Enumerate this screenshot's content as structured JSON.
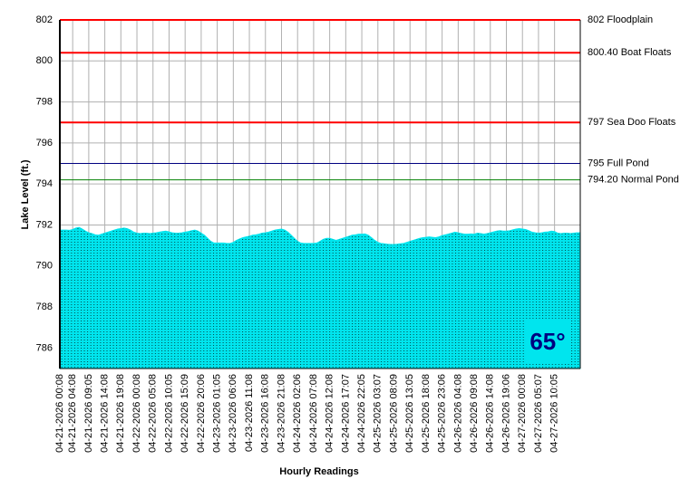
{
  "chart_data": {
    "type": "area",
    "y_axis_label": "Lake Level (ft.)",
    "x_axis_label": "Hourly Readings",
    "ylim": [
      785,
      802
    ],
    "yticks": [
      786,
      788,
      790,
      792,
      794,
      796,
      798,
      800,
      802
    ],
    "grid": true,
    "temperature_label": "65°",
    "reference_lines": [
      {
        "value": 802,
        "label": "802 Floodplain",
        "color": "#ff0000"
      },
      {
        "value": 800.4,
        "label": "800.40 Boat Floats",
        "color": "#ff0000"
      },
      {
        "value": 797,
        "label": "797 Sea Doo Floats",
        "color": "#ff0000"
      },
      {
        "value": 795,
        "label": "795 Full Pond",
        "color": "#000080"
      },
      {
        "value": 794.2,
        "label": "794.20 Normal Pond",
        "color": "#008000"
      }
    ],
    "categories": [
      "04-21-2026 00:08",
      null,
      null,
      null,
      "04-21-2026 04:08",
      null,
      null,
      null,
      null,
      "04-21-2026 09:05",
      null,
      null,
      null,
      null,
      "04-21-2026 14:08",
      null,
      null,
      null,
      null,
      "04-21-2026 19:08",
      null,
      null,
      null,
      null,
      "04-22-2026 00:08",
      null,
      null,
      null,
      null,
      "04-22-2026 05:08",
      null,
      null,
      null,
      null,
      "04-22-2026 10:05",
      null,
      null,
      null,
      null,
      "04-22-2026 15:09",
      null,
      null,
      null,
      null,
      "04-22-2026 20:06",
      null,
      null,
      null,
      null,
      "04-23-2026 01:05",
      null,
      null,
      null,
      null,
      "04-23-2026 06:06",
      null,
      null,
      null,
      null,
      "04-23-2026 11:08",
      null,
      null,
      null,
      null,
      "04-23-2026 16:08",
      null,
      null,
      null,
      null,
      "04-23-2026 21:08",
      null,
      null,
      null,
      null,
      "04-24-2026 02:06",
      null,
      null,
      null,
      null,
      "04-24-2026 07:08",
      null,
      null,
      null,
      null,
      "04-24-2026 12:08",
      null,
      null,
      null,
      null,
      "04-24-2026 17:07",
      null,
      null,
      null,
      null,
      "04-24-2026 22:05",
      null,
      null,
      null,
      null,
      "04-25-2026 03:07",
      null,
      null,
      null,
      null,
      "04-25-2026 08:09",
      null,
      null,
      null,
      null,
      "04-25-2026 13:05",
      null,
      null,
      null,
      null,
      "04-25-2026 18:08",
      null,
      null,
      null,
      null,
      "04-25-2026 23:06",
      null,
      null,
      null,
      null,
      "04-26-2026 04:08",
      null,
      null,
      null,
      null,
      "04-26-2026 09:08",
      null,
      null,
      null,
      null,
      "04-26-2026 14:08",
      null,
      null,
      null,
      null,
      "04-26-2026 19:06",
      null,
      null,
      null,
      null,
      "04-27-2026 00:08",
      null,
      null,
      null,
      null,
      "04-27-2026 05:07",
      null,
      null,
      null,
      null,
      "04-27-2026 10:05",
      null,
      null,
      null,
      null,
      null,
      null,
      null
    ],
    "series": [
      {
        "color": "#00e5ee",
        "values": [
          791.75,
          791.75,
          791.75,
          791.74,
          791.78,
          791.85,
          791.88,
          791.8,
          791.7,
          791.62,
          791.58,
          791.52,
          791.5,
          791.55,
          791.6,
          791.65,
          791.7,
          791.75,
          791.8,
          791.82,
          791.85,
          791.82,
          791.75,
          791.65,
          791.6,
          791.58,
          791.6,
          791.6,
          791.58,
          791.6,
          791.62,
          791.65,
          791.68,
          791.7,
          791.66,
          791.62,
          791.6,
          791.6,
          791.62,
          791.65,
          791.68,
          791.72,
          791.75,
          791.7,
          791.6,
          791.5,
          791.35,
          791.2,
          791.12,
          791.12,
          791.12,
          791.12,
          791.1,
          791.1,
          791.15,
          791.25,
          791.32,
          791.38,
          791.42,
          791.45,
          791.5,
          791.52,
          791.55,
          791.6,
          791.62,
          791.65,
          791.7,
          791.75,
          791.78,
          791.8,
          791.75,
          791.65,
          791.5,
          791.35,
          791.2,
          791.12,
          791.1,
          791.1,
          791.1,
          791.1,
          791.12,
          791.2,
          791.3,
          791.35,
          791.35,
          791.3,
          791.25,
          791.3,
          791.35,
          791.4,
          791.45,
          791.5,
          791.52,
          791.55,
          791.55,
          791.56,
          791.5,
          791.38,
          791.25,
          791.15,
          791.1,
          791.08,
          791.06,
          791.05,
          791.05,
          791.06,
          791.08,
          791.1,
          791.15,
          791.2,
          791.25,
          791.3,
          791.35,
          791.38,
          791.4,
          791.42,
          791.4,
          791.38,
          791.42,
          791.48,
          791.52,
          791.56,
          791.6,
          791.65,
          791.62,
          791.58,
          791.55,
          791.55,
          791.56,
          791.55,
          791.6,
          791.58,
          791.55,
          791.58,
          791.62,
          791.66,
          791.7,
          791.72,
          791.7,
          791.7,
          791.72,
          791.76,
          791.8,
          791.82,
          791.8,
          791.78,
          791.72,
          791.65,
          791.62,
          791.6,
          791.62,
          791.65,
          791.66,
          791.7,
          791.68,
          791.6,
          791.58,
          791.6,
          791.6,
          791.58,
          791.6,
          791.62
        ]
      }
    ]
  }
}
